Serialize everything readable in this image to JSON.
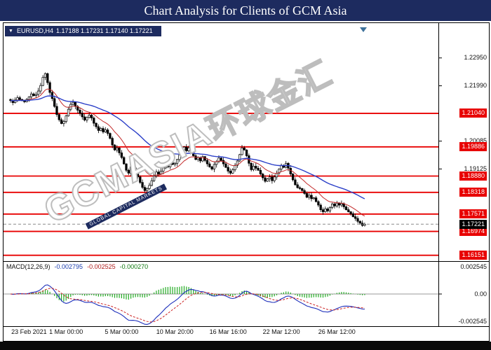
{
  "header": {
    "title": "Chart Analysis for Clients of GCM Asia"
  },
  "quote": {
    "dropdown_icon": "▼",
    "symbol": "EURUSD,H4",
    "ohlc": "1.17188 1.17231 1.17140 1.17221"
  },
  "watermark": {
    "brand": "GCMASIA",
    "cjk": "环球金汇",
    "tagline": "GLOBAL CAPITAL MARKETS"
  },
  "price_axis": {
    "plain": [
      {
        "text": "1.22950",
        "price": 1.2295
      },
      {
        "text": "1.21990",
        "price": 1.2199
      },
      {
        "text": "1.20085",
        "price": 1.20085
      },
      {
        "text": "1.19125",
        "price": 1.19125
      }
    ],
    "boxed": [
      {
        "text": "1.21040",
        "price": 1.2104
      },
      {
        "text": "1.19886",
        "price": 1.19886
      },
      {
        "text": "1.18880",
        "price": 1.1888
      },
      {
        "text": "1.18318",
        "price": 1.18318
      },
      {
        "text": "1.17571",
        "price": 1.17571
      },
      {
        "text": "1.16974",
        "price": 1.16974
      },
      {
        "text": "1.16151",
        "price": 1.16151
      }
    ],
    "current": {
      "text": "1.17221",
      "price": 1.17221
    }
  },
  "macd": {
    "title": "MACD(12,26,9)",
    "value_main": "-0.002795",
    "value_signal": "-0.002525",
    "value_hist": "-0.000270",
    "axis_top": "0.002545",
    "axis_zero": "0.00",
    "axis_bottom": "-0.002545"
  },
  "time_axis": [
    {
      "label": "23 Feb 2021",
      "index": 8
    },
    {
      "label": "1 Mar 00:00",
      "index": 24
    },
    {
      "label": "5 Mar 00:00",
      "index": 48
    },
    {
      "label": "10 Mar 20:00",
      "index": 71
    },
    {
      "label": "16 Mar 16:00",
      "index": 94
    },
    {
      "label": "22 Mar 12:00",
      "index": 117
    },
    {
      "label": "26 Mar 12:00",
      "index": 141
    }
  ],
  "colors": {
    "header_bg": "#1d2b5f",
    "line_red": "#e80000",
    "bull": "#ffffff",
    "bear": "#000000",
    "current_line": "#888888"
  },
  "chart_data": {
    "type": "candlestick",
    "symbol": "EURUSD",
    "timeframe": "H4",
    "title": "EURUSD H4 with horizontal support/resistance levels and MACD(12,26,9)",
    "current_price": 1.17221,
    "y_range": [
      1.1595,
      1.2415
    ],
    "horizontal_lines": [
      1.2104,
      1.19886,
      1.1888,
      1.18318,
      1.17571,
      1.16974,
      1.16151
    ],
    "first_open": 1.2152,
    "closes": [
      1.2148,
      1.2141,
      1.215,
      1.2158,
      1.2152,
      1.2149,
      1.2144,
      1.2152,
      1.2161,
      1.2171,
      1.2165,
      1.2169,
      1.2181,
      1.22,
      1.2228,
      1.2241,
      1.221,
      1.2176,
      1.2155,
      1.2128,
      1.21,
      1.2082,
      1.2069,
      1.2076,
      1.2095,
      1.2118,
      1.2135,
      1.2142,
      1.2128,
      1.2115,
      1.2104,
      1.2092,
      1.2081,
      1.209,
      1.2098,
      1.2088,
      1.207,
      1.2058,
      1.2045,
      1.2052,
      1.204,
      1.2047,
      1.2035,
      1.2018,
      1.1995,
      1.1978,
      1.1985,
      1.1968,
      1.1952,
      1.193,
      1.1908,
      1.1898,
      1.192,
      1.1916,
      1.1902,
      1.1885,
      1.1866,
      1.1849,
      1.1838,
      1.1845,
      1.1856,
      1.1872,
      1.1888,
      1.1902,
      1.1895,
      1.1905,
      1.1916,
      1.1928,
      1.192,
      1.1935,
      1.1928,
      1.1932,
      1.1945,
      1.196,
      1.1978,
      1.1988,
      1.1975,
      1.1985,
      1.1972,
      1.1958,
      1.1945,
      1.1952,
      1.194,
      1.1955,
      1.1942,
      1.193,
      1.192,
      1.1912,
      1.1928,
      1.1938,
      1.195,
      1.1942,
      1.193,
      1.1918,
      1.1905,
      1.1898,
      1.191,
      1.1925,
      1.194,
      1.1962,
      1.1985,
      1.1978,
      1.1958,
      1.1932,
      1.191,
      1.1922,
      1.1915,
      1.1908,
      1.1895,
      1.1882,
      1.187,
      1.1878,
      1.1885,
      1.1872,
      1.1885,
      1.1898,
      1.1912,
      1.1925,
      1.1918,
      1.1932,
      1.1915,
      1.1895,
      1.1875,
      1.1858,
      1.1848,
      1.1845,
      1.1838,
      1.1828,
      1.1815,
      1.1822,
      1.181,
      1.1813,
      1.18,
      1.1788,
      1.1772,
      1.1765,
      1.1775,
      1.1768,
      1.178,
      1.1792,
      1.1785,
      1.1795,
      1.1788,
      1.1793,
      1.1782,
      1.1772,
      1.1765,
      1.1758,
      1.1748,
      1.1742,
      1.1732,
      1.1726,
      1.1718,
      1.17221
    ],
    "overlays": [
      {
        "name": "ma-fast",
        "type": "ema",
        "period": 13,
        "color": "#c22828"
      },
      {
        "name": "ma-slow",
        "type": "ema",
        "period": 45,
        "color": "#2b3fc8"
      }
    ],
    "indicator": {
      "type": "macd",
      "fast": 12,
      "slow": 26,
      "signal": 9,
      "colors": {
        "main": "#1d2fbb",
        "signal": "#cc2222",
        "histogram": "#22aa22"
      }
    }
  }
}
